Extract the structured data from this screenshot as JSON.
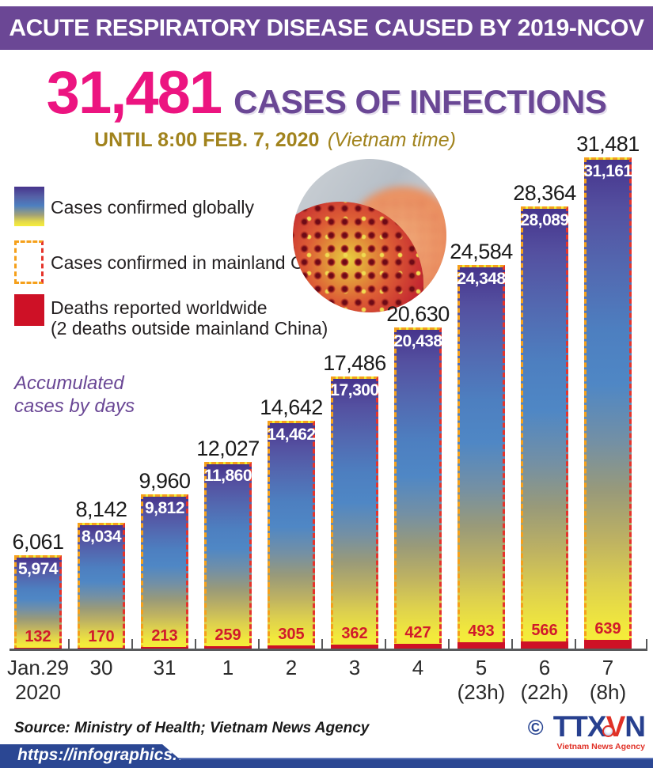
{
  "header": {
    "title": "ACUTE RESPIRATORY DISEASE CAUSED BY 2019-NCOV"
  },
  "hero": {
    "count": "31,481",
    "label": "CASES OF INFECTIONS"
  },
  "subtitle": {
    "time": "UNTIL 8:00 FEB. 7, 2020",
    "timezone": "(Vietnam time)"
  },
  "legend": {
    "global": "Cases confirmed globally",
    "china": "Cases confirmed in mainland China",
    "deaths_line1": "Deaths reported worldwide",
    "deaths_line2": "(2 deaths outside mainland China)"
  },
  "note": {
    "line1": "Accumulated",
    "line2": "cases by days"
  },
  "chart_data": {
    "type": "bar",
    "title": "Accumulated cases by days",
    "xlabel": "",
    "ylabel": "",
    "ylim": [
      0,
      31481
    ],
    "grid": false,
    "legend_position": "top-left",
    "categories": [
      {
        "label": "Jan.29",
        "sublabel": "2020"
      },
      {
        "label": "30",
        "sublabel": ""
      },
      {
        "label": "31",
        "sublabel": ""
      },
      {
        "label": "1",
        "sublabel": ""
      },
      {
        "label": "2",
        "sublabel": ""
      },
      {
        "label": "3",
        "sublabel": ""
      },
      {
        "label": "4",
        "sublabel": ""
      },
      {
        "label": "5",
        "sublabel": "(23h)"
      },
      {
        "label": "6",
        "sublabel": "(22h)"
      },
      {
        "label": "7",
        "sublabel": "(8h)"
      }
    ],
    "series": [
      {
        "name": "Cases confirmed globally",
        "values": [
          6061,
          8142,
          9960,
          12027,
          14642,
          17486,
          20630,
          24584,
          28364,
          31481
        ],
        "labels": [
          "6,061",
          "8,142",
          "9,960",
          "12,027",
          "14,642",
          "17,486",
          "20,630",
          "24,584",
          "28,364",
          "31,481"
        ]
      },
      {
        "name": "Cases confirmed in mainland China",
        "values": [
          5974,
          8034,
          9812,
          11860,
          14462,
          17300,
          20438,
          24348,
          28089,
          31161
        ],
        "labels": [
          "5,974",
          "8,034",
          "9,812",
          "11,860",
          "14,462",
          "17,300",
          "20,438",
          "24,348",
          "28,089",
          "31,161"
        ]
      },
      {
        "name": "Deaths reported worldwide",
        "values": [
          132,
          170,
          213,
          259,
          305,
          362,
          427,
          493,
          566,
          639
        ],
        "labels": [
          "132",
          "170",
          "213",
          "259",
          "305",
          "362",
          "427",
          "493",
          "566",
          "639"
        ]
      }
    ]
  },
  "footer": {
    "source": "Source: Ministry of Health; Vietnam News Agency",
    "url": "https://infographics.vn",
    "copyright": "©",
    "logo": {
      "part1": "TTX",
      "part2": "V",
      "part3": "N",
      "subtitle": "Vietnam News Agency"
    }
  },
  "colors": {
    "header_purple": "#6b4795",
    "hero_pink": "#ec1480",
    "hero_purple": "#6a4795",
    "subtitle_gold": "#a1831d",
    "bar_border_orange": "#f5a01b",
    "bar_border_red": "#e5342b",
    "deaths_red": "#ce1126",
    "footer_blue": "#2b4793"
  }
}
